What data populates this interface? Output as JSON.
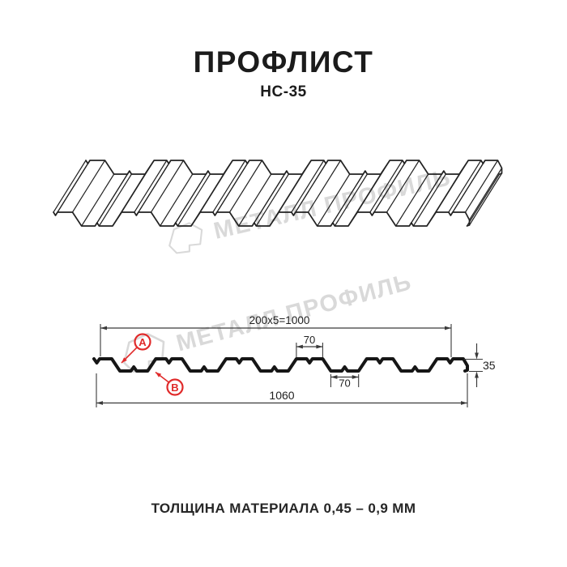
{
  "title": "ПРОФЛИСТ",
  "subtitle": "НС-35",
  "watermark": {
    "text": "МЕТАЛЛ ПРОФИЛЬ"
  },
  "drawing3d": {
    "description": "3D wireframe view of corrugated profiled sheet НС-35"
  },
  "section": {
    "dim_top": "200x5=1000",
    "dim_flange": "70",
    "dim_valley": "70",
    "dim_height": "35",
    "dim_width": "1060",
    "label_a": "A",
    "label_b": "B"
  },
  "footer": {
    "thickness_note": "ТОЛЩИНА МАТЕРИАЛА 0,45 – 0,9 ММ"
  },
  "colors": {
    "line": "#222222",
    "thick_profile": "#161616",
    "dim": "#3a3a3a",
    "dim_text": "#1f1f1f",
    "accent_red": "#e02a2a",
    "watermark": "#d9d9d9"
  }
}
